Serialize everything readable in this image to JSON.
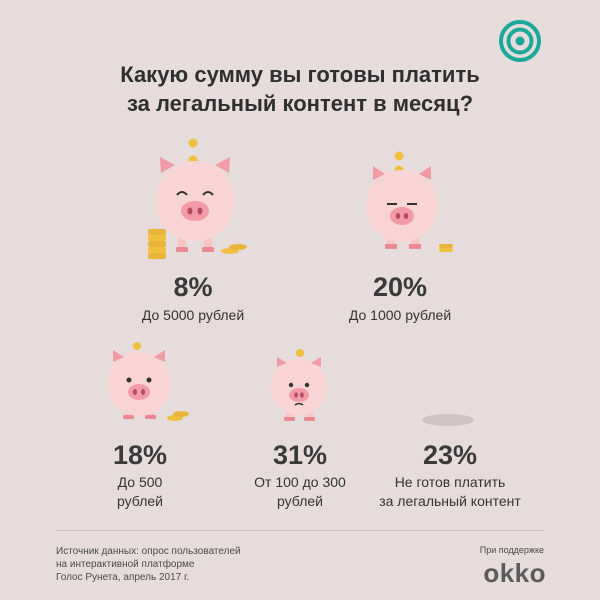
{
  "title_line1": "Какую сумму вы готовы платить",
  "title_line2": "за легальный контент в месяц?",
  "items": [
    {
      "percent": "8%",
      "label_line1": "До 5000 рублей",
      "label_line2": ""
    },
    {
      "percent": "20%",
      "label_line1": "До 1000 рублей",
      "label_line2": ""
    },
    {
      "percent": "18%",
      "label_line1": "До 500",
      "label_line2": "рублей"
    },
    {
      "percent": "31%",
      "label_line1": "От 100 до 300",
      "label_line2": "рублей"
    },
    {
      "percent": "23%",
      "label_line1": "Не готов платить",
      "label_line2": "за легальный контент"
    }
  ],
  "footnote": {
    "line1": "Источник данных: опрос пользователей",
    "line2": "на интерактивной платформе",
    "line3": "Голос Рунета, апрель 2017 г."
  },
  "support_text": "При поддержке",
  "brand": "okko",
  "colors": {
    "background": "#e6dcdc",
    "pig": "#f9d4d4",
    "snout": "#f29aa6",
    "coin": "#f0c040",
    "logo": "#19a89a"
  },
  "icons": [
    "target-logo-icon",
    "piggy-bank-icon",
    "coin-icon"
  ]
}
